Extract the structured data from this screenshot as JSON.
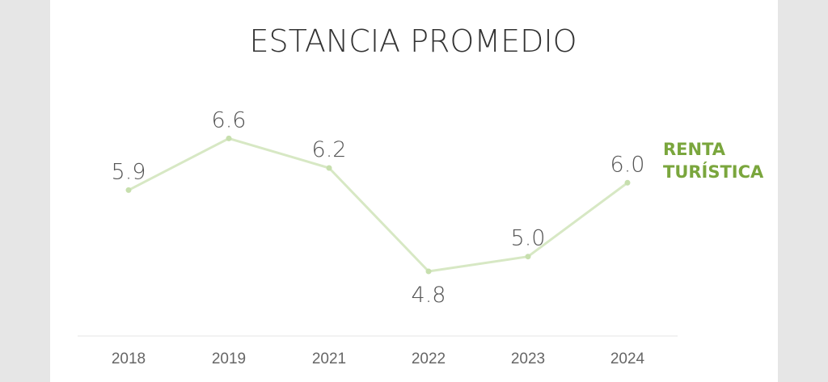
{
  "chart_data": {
    "type": "line",
    "title": "ESTANCIA PROMEDIO",
    "categories": [
      "2018",
      "2019",
      "2021",
      "2022",
      "2023",
      "2024"
    ],
    "series": [
      {
        "name": "RENTA TURÍSTICA",
        "values": [
          5.9,
          6.6,
          6.2,
          4.8,
          5.0,
          6.0
        ],
        "labels": [
          "5.9",
          "6.6",
          "6.2",
          "4.8",
          "5.0",
          "6.0"
        ]
      }
    ],
    "legend": {
      "label_lines": [
        "RENTA",
        "TURÍSTICA"
      ],
      "placement": "right"
    },
    "grid": false,
    "colors": {
      "line": "#d7e8c4",
      "marker": "#c7dfae",
      "legend_text": "#7aa63d",
      "title_text": "#333333",
      "label_text": "#555555",
      "tick_text": "#666666",
      "baseline": "#eeeeee",
      "background": "#ffffff",
      "page_background": "#e6e6e6"
    }
  }
}
